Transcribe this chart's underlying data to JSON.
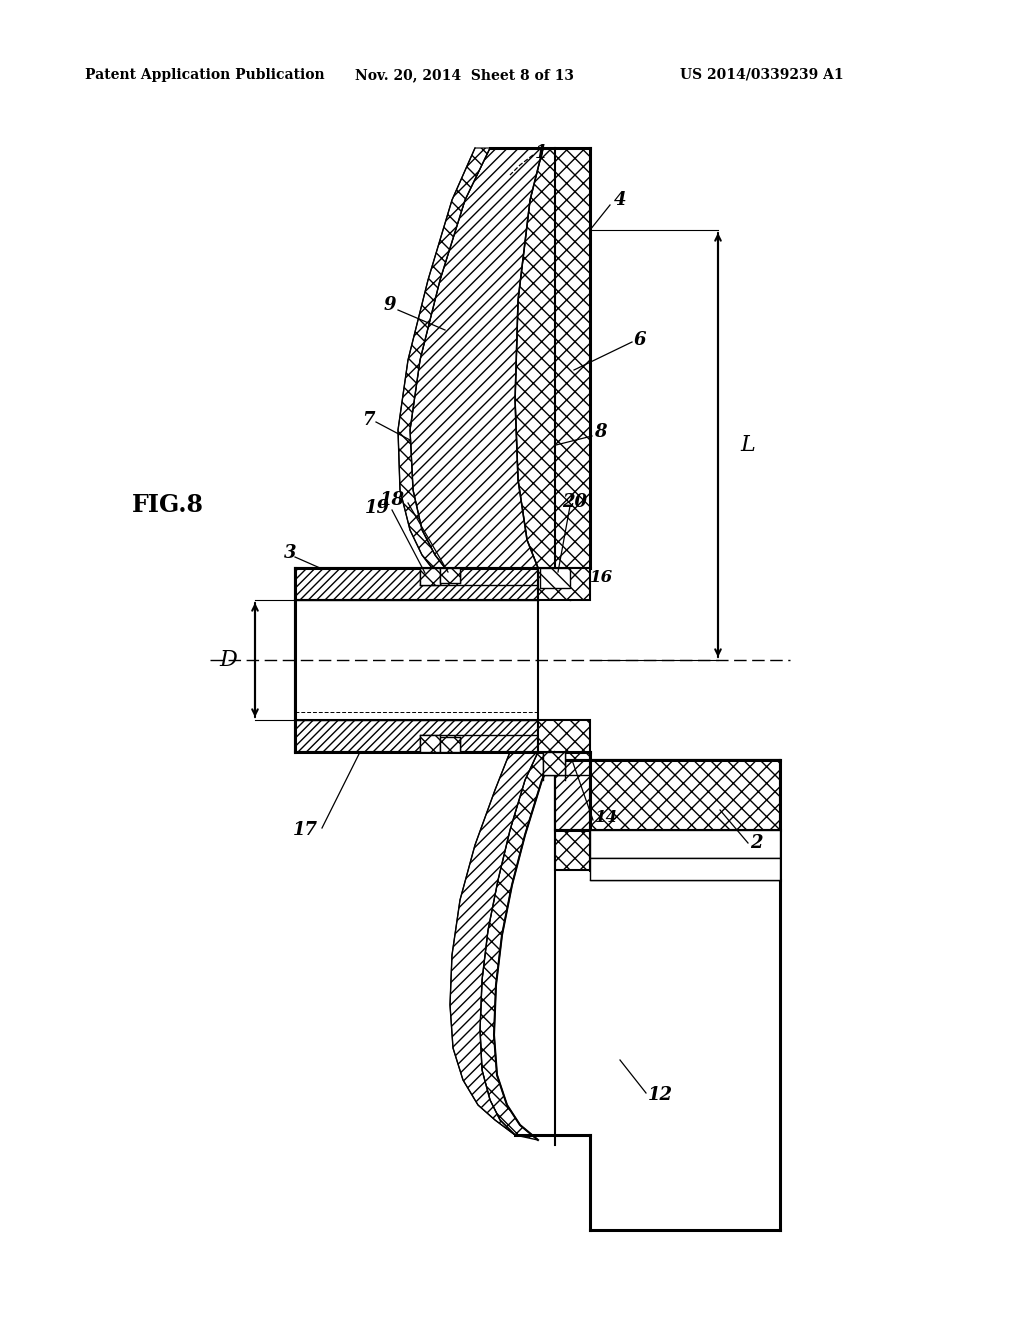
{
  "header_left": "Patent Application Publication",
  "header_center": "Nov. 20, 2014  Sheet 8 of 13",
  "header_right": "US 2014/0339239 A1",
  "fig_label": "FIG.8",
  "background_color": "#ffffff",
  "line_color": "#000000"
}
